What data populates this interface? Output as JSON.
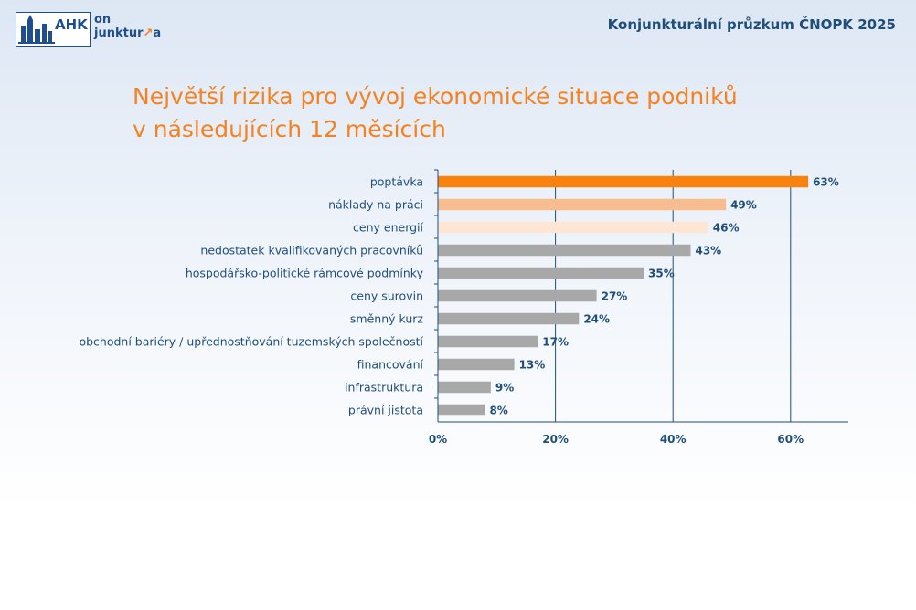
{
  "header": {
    "logo_mark": "AHK",
    "logo_line1": "on",
    "logo_line2": "junktur",
    "logo_line2_suffix": "a",
    "title": "Konjunkturální průzkum ČNOPK 2025"
  },
  "slide": {
    "title_line1": "Největší rizika pro vývoj ekonomické situace podniků",
    "title_line2": "v následujících 12 měsících"
  },
  "colors": {
    "title": "#f58220",
    "header": "#1f4e79",
    "label": "#1f4e79",
    "axis": "#1f4e79",
    "bar_top": "#f9820f",
    "bar_second": "#f8bd8f",
    "bar_third": "#fde6d3",
    "bar_default": "#a8a8a8"
  },
  "chart_data": {
    "type": "bar",
    "orientation": "horizontal",
    "categories": [
      "poptávka",
      "náklady na práci",
      "ceny energií",
      "nedostatek kvalifikovaných pracovníků",
      "hospodářsko-politické rámcové podmínky",
      "ceny surovin",
      "směnný kurz",
      "obchodní bariéry / upřednostňování tuzemských společností",
      "financování",
      "infrastruktura",
      "právní jistota"
    ],
    "values": [
      63,
      49,
      46,
      43,
      35,
      27,
      24,
      17,
      13,
      9,
      8
    ],
    "data_labels": [
      "63%",
      "49%",
      "46%",
      "43%",
      "35%",
      "27%",
      "24%",
      "17%",
      "13%",
      "9%",
      "8%"
    ],
    "x_ticks": [
      0,
      20,
      40,
      60
    ],
    "x_tick_labels": [
      "0%",
      "20%",
      "40%",
      "60%"
    ],
    "xlim": [
      0,
      70
    ],
    "xlabel": "",
    "ylabel": "",
    "grid": "vertical",
    "legend": "none"
  }
}
